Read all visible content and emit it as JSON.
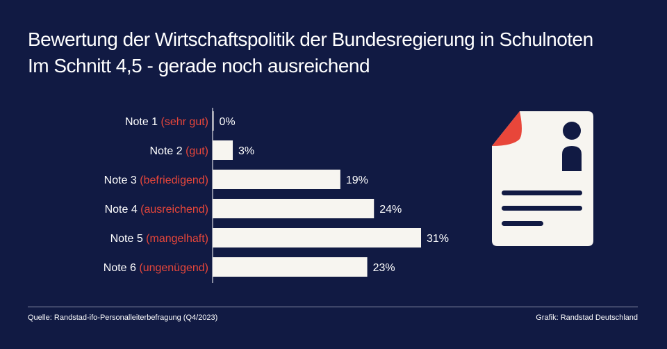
{
  "title_line1": "Bewertung der Wirtschaftspolitik der Bundesregierung in Schulnoten",
  "title_line2": "Im Schnitt 4,5 - gerade noch ausreichend",
  "source": "Quelle: Randstad-ifo-Personalleiterbefragung (Q4/2023)",
  "credit": "Grafik: Randstad Deutschland",
  "colors": {
    "background": "#111a43",
    "bar": "#f7f5f0",
    "accent": "#e8463a",
    "text": "#ffffff",
    "icon_dark": "#111a43"
  },
  "icon": "document-with-person-icon",
  "chart_data": {
    "type": "bar",
    "orientation": "horizontal",
    "categories": [
      {
        "main": "Note 1",
        "sub": "(sehr gut)"
      },
      {
        "main": "Note 2",
        "sub": "(gut)"
      },
      {
        "main": "Note 3",
        "sub": "(befriedigend)"
      },
      {
        "main": "Note 4",
        "sub": "(ausreichend)"
      },
      {
        "main": "Note 5",
        "sub": "(mangelhaft)"
      },
      {
        "main": "Note 6",
        "sub": "(ungenügend)"
      }
    ],
    "values": [
      0,
      3,
      19,
      24,
      31,
      23
    ],
    "value_labels": [
      "0%",
      "3%",
      "19%",
      "24%",
      "31%",
      "23%"
    ],
    "unit": "%",
    "xlim": [
      0,
      31
    ],
    "grid": false,
    "legend": "none"
  }
}
